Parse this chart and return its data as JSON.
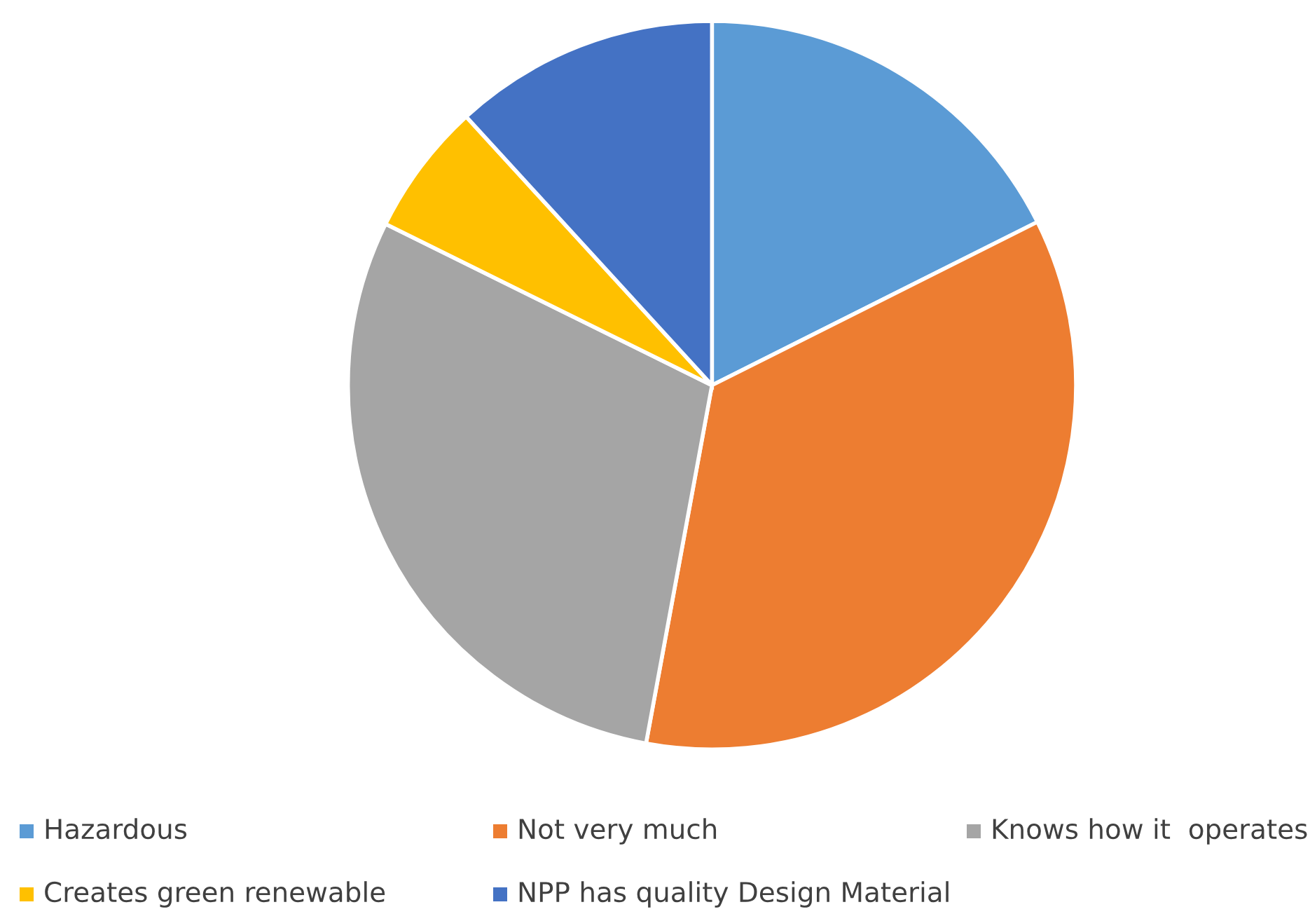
{
  "chart_data": {
    "type": "pie",
    "categories": [
      "Hazardous",
      "Not very much",
      "Knows how it  operates",
      "Creates green renewable",
      "NPP has quality Design Material"
    ],
    "values": [
      17.6,
      35.3,
      29.4,
      5.9,
      11.8
    ],
    "colors": [
      "#5b9bd5",
      "#ed7d31",
      "#a5a5a5",
      "#ffc000",
      "#4472c4"
    ],
    "legend": "bottom"
  }
}
